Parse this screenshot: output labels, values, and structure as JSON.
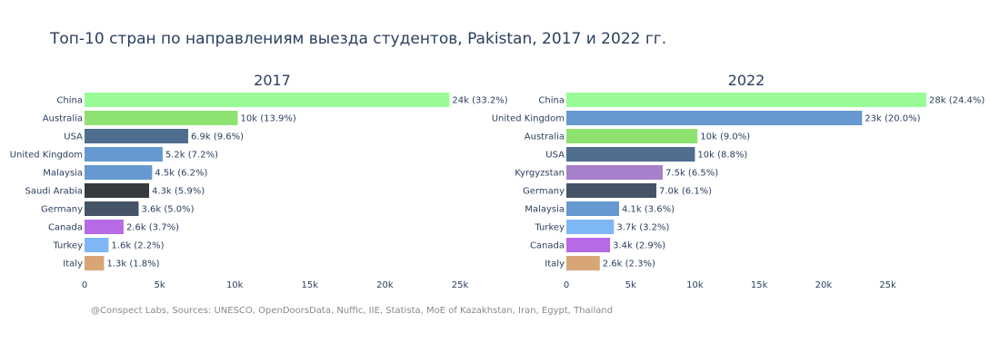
{
  "title": "Топ-10 стран по направлениям выезда студентов, Pakistan, 2017 и 2022 гг.",
  "source": "@Conspect Labs, Sources: UNESCO, OpenDoorsData, Nuffic, IIE, Statista, MoE of Kazakhstan, Iran, Egypt, Thailand",
  "chart_data": [
    {
      "type": "bar",
      "orientation": "horizontal",
      "title": "2017",
      "xlim": [
        0,
        25000
      ],
      "xticks": [
        0,
        5000,
        10000,
        15000,
        20000,
        25000
      ],
      "xtick_labels": [
        "0",
        "5k",
        "10k",
        "15k",
        "20k",
        "25k"
      ],
      "categories": [
        "China",
        "Australia",
        "USA",
        "United Kingdom",
        "Malaysia",
        "Saudi Arabia",
        "Germany",
        "Canada",
        "Turkey",
        "Italy"
      ],
      "values": [
        24300,
        10200,
        6900,
        5200,
        4500,
        4300,
        3600,
        2600,
        1600,
        1300
      ],
      "labels": [
        "24k (33.2%)",
        "10k (13.9%)",
        "6.9k (9.6%)",
        "5.2k (7.2%)",
        "4.5k (6.2%)",
        "4.3k (5.9%)",
        "3.6k (5.0%)",
        "2.6k (3.7%)",
        "1.6k (2.2%)",
        "1.3k (1.8%)"
      ],
      "colors": [
        "#98fb98",
        "#8ee370",
        "#4f6e8f",
        "#6599cf",
        "#6599cf",
        "#373a3d",
        "#445466",
        "#b76ae6",
        "#7eb7f3",
        "#d8a676"
      ]
    },
    {
      "type": "bar",
      "orientation": "horizontal",
      "title": "2022",
      "xlim": [
        0,
        28000
      ],
      "xticks": [
        0,
        5000,
        10000,
        15000,
        20000,
        25000
      ],
      "xtick_labels": [
        "0",
        "5k",
        "10k",
        "15k",
        "20k",
        "25k"
      ],
      "categories": [
        "China",
        "United Kingdom",
        "Australia",
        "USA",
        "Kyrgyzstan",
        "Germany",
        "Malaysia",
        "Turkey",
        "Canada",
        "Italy"
      ],
      "values": [
        28000,
        23000,
        10200,
        10000,
        7500,
        7000,
        4100,
        3700,
        3400,
        2600
      ],
      "labels": [
        "28k (24.4%)",
        "23k (20.0%)",
        "10k (9.0%)",
        "10k (8.8%)",
        "7.5k (6.5%)",
        "7.0k (6.1%)",
        "4.1k (3.6%)",
        "3.7k (3.2%)",
        "3.4k (2.9%)",
        "2.6k (2.3%)"
      ],
      "colors": [
        "#98fb98",
        "#6599cf",
        "#8ee370",
        "#4f6e8f",
        "#a780cc",
        "#445466",
        "#6599cf",
        "#7eb7f3",
        "#b76ae6",
        "#d8a676"
      ]
    }
  ]
}
